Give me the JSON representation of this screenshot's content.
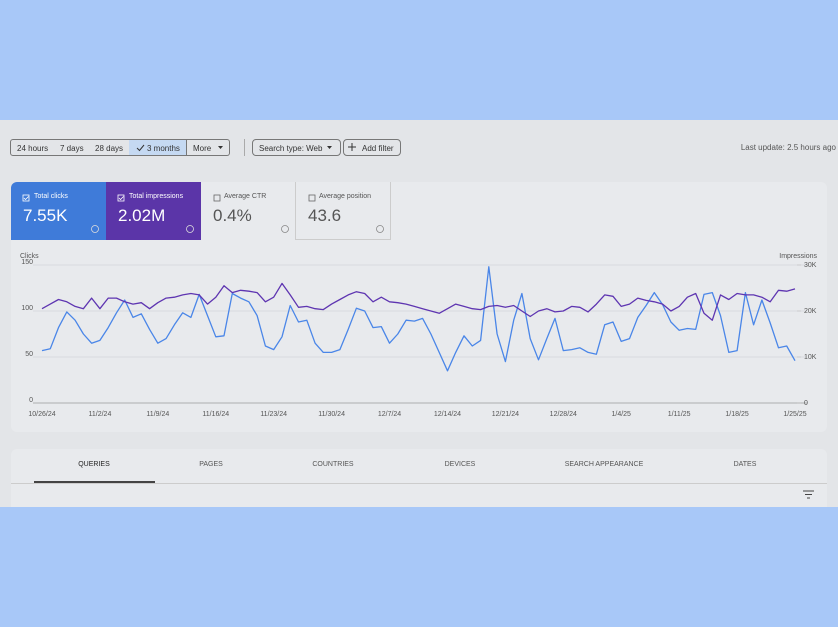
{
  "filters": {
    "time_ranges": [
      "24 hours",
      "7 days",
      "28 days",
      "3 months"
    ],
    "selected": "3 months",
    "more": "More",
    "search_type": "Search type: Web",
    "add_filter": "Add filter",
    "last_update": "Last update: 2.5 hours ago"
  },
  "metrics": [
    {
      "label": "Total clicks",
      "value": "7.55K"
    },
    {
      "label": "Total impressions",
      "value": "2.02M"
    },
    {
      "label": "Average CTR",
      "value": "0.4%"
    },
    {
      "label": "Average position",
      "value": "43.6"
    }
  ],
  "chart_data": {
    "type": "line",
    "y_label": "Clicks",
    "y2_label": "Impressions",
    "categories": [
      "10/26/24",
      null,
      null,
      null,
      null,
      null,
      null,
      "11/2/24",
      null,
      null,
      null,
      null,
      null,
      null,
      "11/9/24",
      null,
      null,
      null,
      null,
      null,
      null,
      "11/16/24",
      null,
      null,
      null,
      null,
      null,
      null,
      "11/23/24",
      null,
      null,
      null,
      null,
      null,
      null,
      "11/30/24",
      null,
      null,
      null,
      null,
      null,
      null,
      "12/7/24",
      null,
      null,
      null,
      null,
      null,
      null,
      "12/14/24",
      null,
      null,
      null,
      null,
      null,
      null,
      "12/21/24",
      null,
      null,
      null,
      null,
      null,
      null,
      "12/28/24",
      null,
      null,
      null,
      null,
      null,
      null,
      "1/4/25",
      null,
      null,
      null,
      null,
      null,
      null,
      "1/11/25",
      null,
      null,
      null,
      null,
      null,
      null,
      "1/18/25",
      null,
      null,
      null,
      null,
      null,
      null,
      "1/25/25"
    ],
    "series": [
      {
        "name": "Clicks",
        "color": "#4a86e8",
        "values": [
          57,
          59,
          82,
          99,
          90,
          75,
          65,
          68,
          82,
          98,
          112,
          93,
          97,
          80,
          65,
          70,
          85,
          98,
          93,
          118,
          95,
          72,
          73,
          119,
          114,
          110,
          95,
          62,
          58,
          72,
          106,
          88,
          90,
          65,
          55,
          55,
          58,
          80,
          103,
          100,
          82,
          83,
          65,
          75,
          90,
          89,
          92,
          75,
          55,
          35,
          55,
          73,
          62,
          68,
          148,
          75,
          45,
          90,
          119,
          70,
          47,
          70,
          92,
          57,
          58,
          60,
          55,
          53,
          85,
          88,
          67,
          70,
          93,
          106,
          120,
          107,
          88,
          79,
          81,
          80,
          118,
          120,
          95,
          55,
          57,
          120,
          85,
          112,
          87,
          60,
          62,
          46
        ]
      },
      {
        "name": "Impressions",
        "color": "#5e35b1",
        "axis": "y2",
        "values": [
          20500,
          21500,
          22500,
          22000,
          21000,
          20500,
          22800,
          20500,
          22800,
          22800,
          22000,
          21500,
          21800,
          20500,
          21800,
          22800,
          23000,
          23500,
          23800,
          23500,
          21500,
          23000,
          25500,
          24000,
          24500,
          24300,
          24000,
          22000,
          23000,
          26000,
          23500,
          20800,
          21000,
          20500,
          20300,
          21500,
          22500,
          23500,
          24200,
          23800,
          22000,
          23000,
          22000,
          21800,
          21500,
          21000,
          20500,
          20000,
          19500,
          20500,
          21500,
          21000,
          20500,
          20300,
          21000,
          21200,
          20800,
          21200,
          20000,
          18800,
          20000,
          20500,
          19800,
          20000,
          21000,
          20800,
          19800,
          21500,
          23500,
          23200,
          21000,
          21500,
          22800,
          22300,
          22000,
          21500,
          20000,
          21000,
          23000,
          23800,
          19500,
          18000,
          23500,
          22500,
          23800,
          23500,
          23500,
          23000,
          22000,
          24500,
          24300,
          24800
        ]
      }
    ],
    "ylim": [
      0,
      150
    ],
    "yticks": [
      0,
      50,
      100,
      150
    ],
    "y2lim": [
      0,
      30000
    ],
    "y2ticks": [
      0,
      {
        "value": 10000,
        "label": "10K"
      },
      {
        "value": 20000,
        "label": "20K"
      },
      {
        "value": 30000,
        "label": "30K"
      }
    ],
    "grid": true
  },
  "tabs": [
    "QUERIES",
    "PAGES",
    "COUNTRIES",
    "DEVICES",
    "SEARCH APPEARANCE",
    "DATES"
  ]
}
